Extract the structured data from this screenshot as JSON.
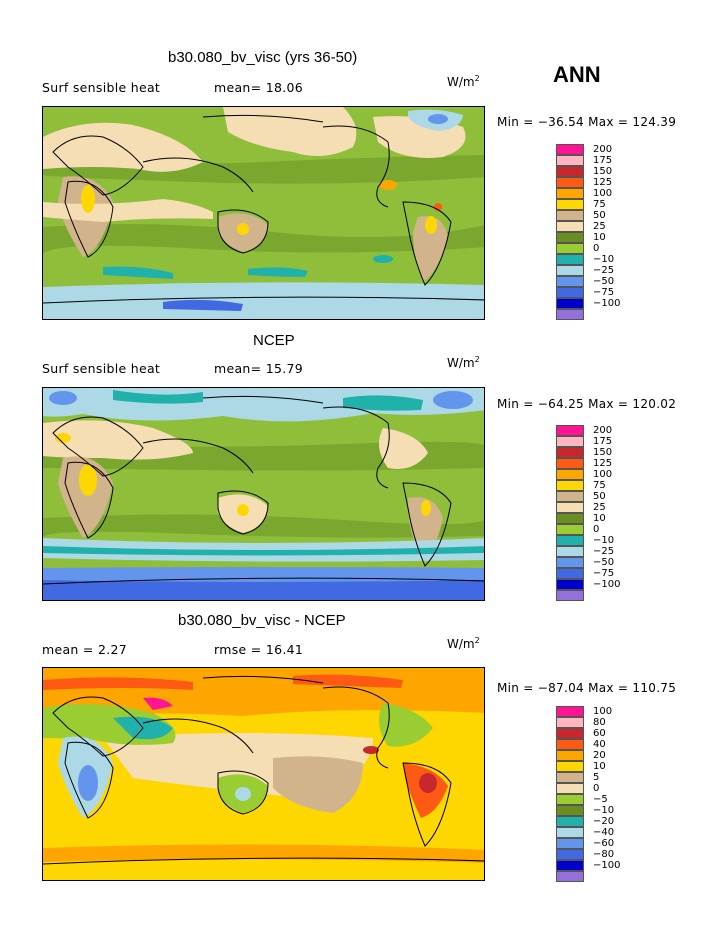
{
  "season": "ANN",
  "panels": [
    {
      "title": "b30.080_bv_visc (yrs 36-50)",
      "left_label": "Surf sensible heat",
      "mid_label": "mean=  18.06",
      "units": "W/m",
      "units_exp": "2",
      "minmax": "Min = −36.54  Max = 124.39",
      "legend": [
        {
          "label": "200",
          "color": "#ff1493"
        },
        {
          "label": "175",
          "color": "#ffb6c1"
        },
        {
          "label": "150",
          "color": "#c8282d"
        },
        {
          "label": "125",
          "color": "#ff5a14"
        },
        {
          "label": "100",
          "color": "#ffa500"
        },
        {
          "label": "75",
          "color": "#ffd700"
        },
        {
          "label": "50",
          "color": "#d2b48c"
        },
        {
          "label": "25",
          "color": "#f5deb3"
        },
        {
          "label": "10",
          "color": "#6b8e23"
        },
        {
          "label": "0",
          "color": "#9acd32"
        },
        {
          "label": "−10",
          "color": "#20b2aa"
        },
        {
          "label": "−25",
          "color": "#add8e6"
        },
        {
          "label": "−50",
          "color": "#6495ed"
        },
        {
          "label": "−75",
          "color": "#4169e1"
        },
        {
          "label": "−100",
          "color": "#0000cd"
        },
        {
          "label": "",
          "color": "#9370db"
        }
      ]
    },
    {
      "title": "NCEP",
      "left_label": "Surf sensible heat",
      "mid_label": "mean=  15.79",
      "units": "W/m",
      "units_exp": "2",
      "minmax": "Min = −64.25  Max = 120.02",
      "legend": [
        {
          "label": "200",
          "color": "#ff1493"
        },
        {
          "label": "175",
          "color": "#ffb6c1"
        },
        {
          "label": "150",
          "color": "#c8282d"
        },
        {
          "label": "125",
          "color": "#ff5a14"
        },
        {
          "label": "100",
          "color": "#ffa500"
        },
        {
          "label": "75",
          "color": "#ffd700"
        },
        {
          "label": "50",
          "color": "#d2b48c"
        },
        {
          "label": "25",
          "color": "#f5deb3"
        },
        {
          "label": "10",
          "color": "#6b8e23"
        },
        {
          "label": "0",
          "color": "#9acd32"
        },
        {
          "label": "−10",
          "color": "#20b2aa"
        },
        {
          "label": "−25",
          "color": "#add8e6"
        },
        {
          "label": "−50",
          "color": "#6495ed"
        },
        {
          "label": "−75",
          "color": "#4169e1"
        },
        {
          "label": "−100",
          "color": "#0000cd"
        },
        {
          "label": "",
          "color": "#9370db"
        }
      ]
    },
    {
      "title": "b30.080_bv_visc - NCEP",
      "left_label": "mean =    2.27",
      "mid_label": "rmse =  16.41",
      "units": "W/m",
      "units_exp": "2",
      "minmax": "Min = −87.04  Max = 110.75",
      "legend": [
        {
          "label": "100",
          "color": "#ff1493"
        },
        {
          "label": "80",
          "color": "#ffb6c1"
        },
        {
          "label": "60",
          "color": "#c8282d"
        },
        {
          "label": "40",
          "color": "#ff5a14"
        },
        {
          "label": "20",
          "color": "#ffa500"
        },
        {
          "label": "10",
          "color": "#ffd700"
        },
        {
          "label": "5",
          "color": "#d2b48c"
        },
        {
          "label": "0",
          "color": "#f5deb3"
        },
        {
          "label": "−5",
          "color": "#9acd32"
        },
        {
          "label": "−10",
          "color": "#6b8e23"
        },
        {
          "label": "−20",
          "color": "#20b2aa"
        },
        {
          "label": "−40",
          "color": "#add8e6"
        },
        {
          "label": "−60",
          "color": "#6495ed"
        },
        {
          "label": "−80",
          "color": "#4169e1"
        },
        {
          "label": "−100",
          "color": "#0000cd"
        },
        {
          "label": "",
          "color": "#9370db"
        }
      ]
    }
  ]
}
